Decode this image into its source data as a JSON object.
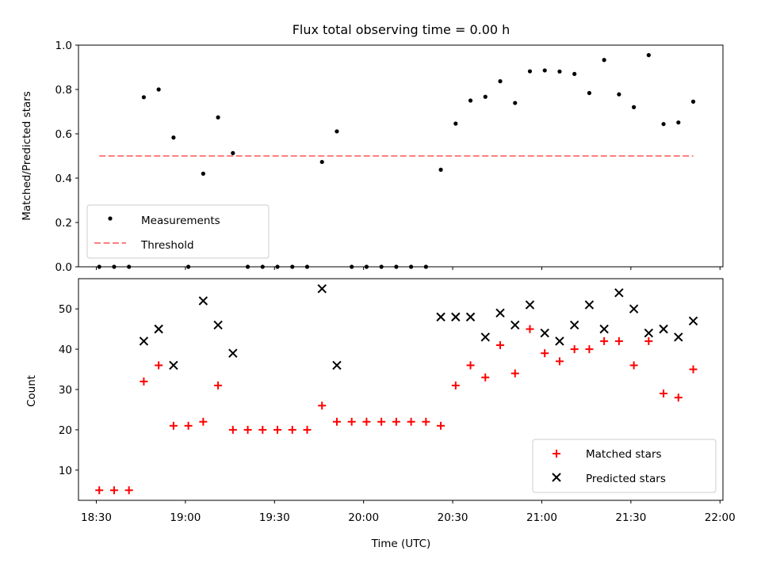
{
  "chart_data": [
    {
      "type": "scatter",
      "title": "Flux total observing time = 0.00 h",
      "xlabel": "",
      "ylabel": "Matched/Predicted stars",
      "ylim": [
        0,
        1.0
      ],
      "yticks": [
        "0.0",
        "0.2",
        "0.4",
        "0.6",
        "0.8",
        "1.0"
      ],
      "grid": false,
      "legend": {
        "placement": "lower-left",
        "entries": [
          "Measurements",
          "Threshold"
        ]
      },
      "series": [
        {
          "name": "Measurements",
          "marker": "dot",
          "color": "#000000",
          "points": [
            [
              "18:31",
              0.0
            ],
            [
              "18:36",
              0.0
            ],
            [
              "18:41",
              0.0
            ],
            [
              "18:46",
              0.765
            ],
            [
              "18:51",
              0.8
            ],
            [
              "18:56",
              0.583
            ],
            [
              "19:01",
              0.0
            ],
            [
              "19:06",
              0.42
            ],
            [
              "19:11",
              0.674
            ],
            [
              "19:16",
              0.513
            ],
            [
              "19:21",
              0.0
            ],
            [
              "19:26",
              0.0
            ],
            [
              "19:31",
              0.0
            ],
            [
              "19:36",
              0.0
            ],
            [
              "19:41",
              0.0
            ],
            [
              "19:46",
              0.473
            ],
            [
              "19:51",
              0.611
            ],
            [
              "19:56",
              0.0
            ],
            [
              "20:01",
              0.0
            ],
            [
              "20:06",
              0.0
            ],
            [
              "20:11",
              0.0
            ],
            [
              "20:16",
              0.0
            ],
            [
              "20:21",
              0.0
            ],
            [
              "20:26",
              0.438
            ],
            [
              "20:31",
              0.646
            ],
            [
              "20:36",
              0.75
            ],
            [
              "20:41",
              0.767
            ],
            [
              "20:46",
              0.837
            ],
            [
              "20:51",
              0.739
            ],
            [
              "20:56",
              0.882
            ],
            [
              "21:01",
              0.886
            ],
            [
              "21:06",
              0.881
            ],
            [
              "21:11",
              0.87
            ],
            [
              "21:16",
              0.784
            ],
            [
              "21:21",
              0.933
            ],
            [
              "21:26",
              0.778
            ],
            [
              "21:31",
              0.72
            ],
            [
              "21:36",
              0.955
            ],
            [
              "21:41",
              0.644
            ],
            [
              "21:46",
              0.651
            ],
            [
              "21:51",
              0.745
            ]
          ]
        },
        {
          "name": "Threshold",
          "marker": "dashed-line",
          "color": "#ff8080",
          "points": [
            [
              "18:31",
              0.5
            ],
            [
              "21:51",
              0.5
            ]
          ]
        }
      ]
    },
    {
      "type": "scatter",
      "title": "",
      "xlabel": "Time (UTC)",
      "ylabel": "Count",
      "ylim": [
        2.5,
        57.5
      ],
      "yticks": [
        "10",
        "20",
        "30",
        "40",
        "50"
      ],
      "xlim": [
        "18:24",
        "22:01"
      ],
      "xticks": [
        "18:30",
        "19:00",
        "19:30",
        "20:00",
        "20:30",
        "21:00",
        "21:30",
        "22:00"
      ],
      "grid": false,
      "legend": {
        "placement": "lower-right",
        "entries": [
          "Matched stars",
          "Predicted stars"
        ]
      },
      "series": [
        {
          "name": "Matched stars",
          "marker": "plus",
          "color": "#ff0000",
          "points": [
            [
              "18:31",
              5
            ],
            [
              "18:36",
              5
            ],
            [
              "18:41",
              5
            ],
            [
              "18:46",
              32
            ],
            [
              "18:51",
              36
            ],
            [
              "18:56",
              21
            ],
            [
              "19:01",
              21
            ],
            [
              "19:06",
              22
            ],
            [
              "19:11",
              31
            ],
            [
              "19:16",
              20
            ],
            [
              "19:21",
              20
            ],
            [
              "19:26",
              20
            ],
            [
              "19:31",
              20
            ],
            [
              "19:36",
              20
            ],
            [
              "19:41",
              20
            ],
            [
              "19:46",
              26
            ],
            [
              "19:51",
              22
            ],
            [
              "19:56",
              22
            ],
            [
              "20:01",
              22
            ],
            [
              "20:06",
              22
            ],
            [
              "20:11",
              22
            ],
            [
              "20:16",
              22
            ],
            [
              "20:21",
              22
            ],
            [
              "20:26",
              21
            ],
            [
              "20:31",
              31
            ],
            [
              "20:36",
              36
            ],
            [
              "20:41",
              33
            ],
            [
              "20:46",
              41
            ],
            [
              "20:51",
              34
            ],
            [
              "20:56",
              45
            ],
            [
              "21:01",
              39
            ],
            [
              "21:06",
              37
            ],
            [
              "21:11",
              40
            ],
            [
              "21:16",
              40
            ],
            [
              "21:21",
              42
            ],
            [
              "21:26",
              42
            ],
            [
              "21:31",
              36
            ],
            [
              "21:36",
              42
            ],
            [
              "21:41",
              29
            ],
            [
              "21:46",
              28
            ],
            [
              "21:51",
              35
            ]
          ]
        },
        {
          "name": "Predicted stars",
          "marker": "x",
          "color": "#000000",
          "points": [
            [
              "18:46",
              42
            ],
            [
              "18:51",
              45
            ],
            [
              "18:56",
              36
            ],
            [
              "19:06",
              52
            ],
            [
              "19:11",
              46
            ],
            [
              "19:16",
              39
            ],
            [
              "19:46",
              55
            ],
            [
              "19:51",
              36
            ],
            [
              "20:26",
              48
            ],
            [
              "20:31",
              48
            ],
            [
              "20:36",
              48
            ],
            [
              "20:41",
              43
            ],
            [
              "20:46",
              49
            ],
            [
              "20:51",
              46
            ],
            [
              "20:56",
              51
            ],
            [
              "21:01",
              44
            ],
            [
              "21:06",
              42
            ],
            [
              "21:11",
              46
            ],
            [
              "21:16",
              51
            ],
            [
              "21:21",
              45
            ],
            [
              "21:26",
              54
            ],
            [
              "21:31",
              50
            ],
            [
              "21:36",
              44
            ],
            [
              "21:41",
              45
            ],
            [
              "21:46",
              43
            ],
            [
              "21:51",
              47
            ]
          ]
        }
      ]
    }
  ]
}
